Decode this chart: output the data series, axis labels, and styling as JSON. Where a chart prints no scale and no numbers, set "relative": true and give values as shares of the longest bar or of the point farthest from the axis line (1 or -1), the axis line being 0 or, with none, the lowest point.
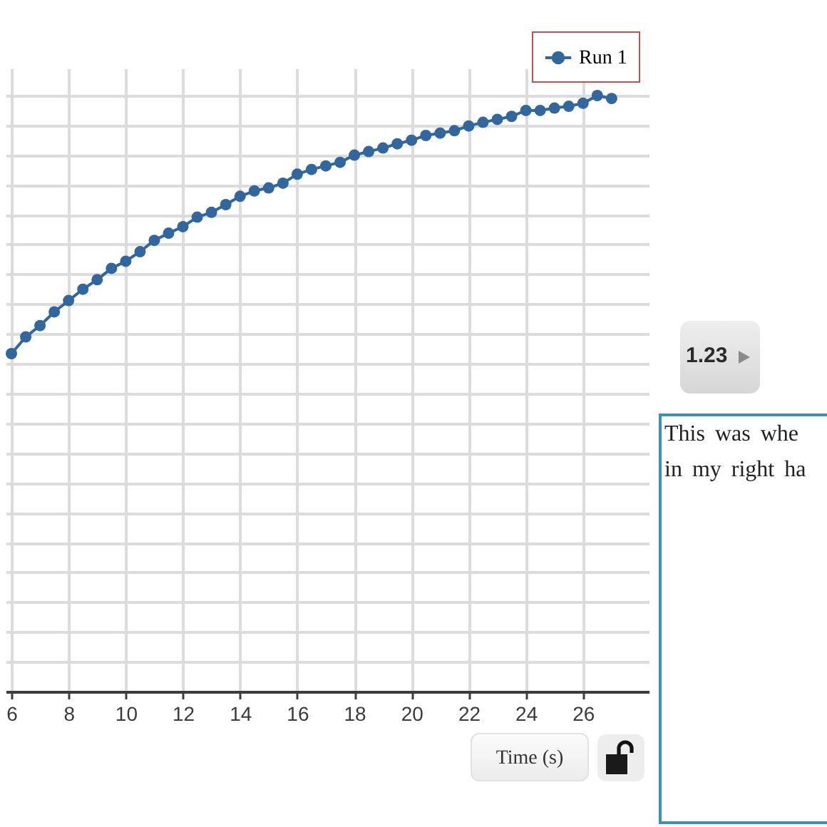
{
  "chart_data": {
    "type": "line",
    "relative": true,
    "x": [
      6,
      6.5,
      7,
      7.5,
      8,
      8.5,
      9,
      9.5,
      10,
      10.5,
      11,
      11.5,
      12,
      12.5,
      13,
      13.5,
      14,
      14.5,
      15,
      15.5,
      16,
      16.5,
      17,
      17.5,
      18,
      18.5,
      19,
      19.5,
      20,
      20.5,
      21,
      21.5,
      22,
      22.5,
      23,
      23.5,
      24,
      24.5,
      25,
      25.5,
      26,
      26.5,
      27
    ],
    "series": [
      {
        "name": "Run 1",
        "color": "#31679e",
        "values": [
          0.567,
          0.595,
          0.614,
          0.637,
          0.656,
          0.675,
          0.691,
          0.71,
          0.722,
          0.738,
          0.757,
          0.769,
          0.78,
          0.796,
          0.804,
          0.817,
          0.831,
          0.84,
          0.845,
          0.853,
          0.868,
          0.876,
          0.882,
          0.888,
          0.9,
          0.906,
          0.912,
          0.919,
          0.925,
          0.933,
          0.937,
          0.941,
          0.949,
          0.955,
          0.96,
          0.965,
          0.975,
          0.975,
          0.979,
          0.982,
          0.987,
          1,
          0.995
        ]
      }
    ],
    "xlim": [
      5.8,
      28.3
    ],
    "xticks": [
      6,
      8,
      10,
      12,
      14,
      16,
      18,
      20,
      22,
      24,
      26
    ],
    "xlabel": "Time (s)",
    "grid": true,
    "legend": "top right",
    "marker": "circle",
    "annotations": [
      "1.23",
      "This was whe\nin my right ha"
    ]
  }
}
